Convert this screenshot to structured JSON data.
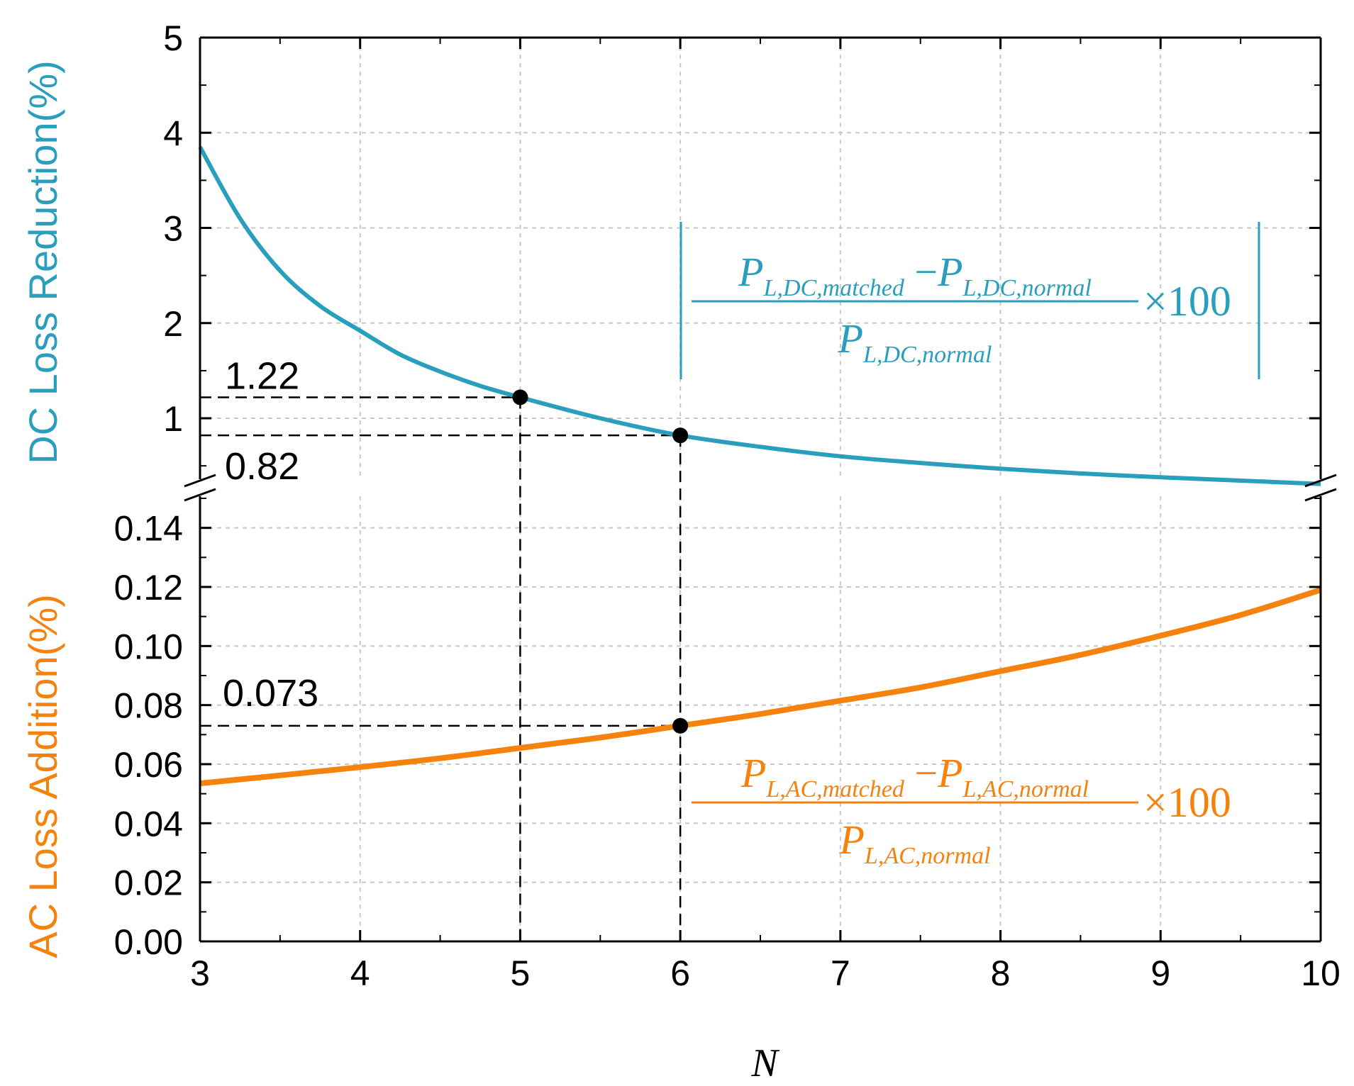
{
  "chart_data": {
    "type": "line",
    "x": {
      "label": "N",
      "range": [
        3,
        10
      ],
      "ticks": [
        "3",
        "4",
        "5",
        "6",
        "7",
        "8",
        "9",
        "10"
      ]
    },
    "panels": [
      {
        "name": "dc",
        "ylabel": "DC Loss Reduction(%)",
        "color": "#2a9fbd",
        "range": [
          0.3,
          5
        ],
        "ticks": [
          "1",
          "2",
          "3",
          "4",
          "5"
        ],
        "series": {
          "x": [
            3,
            3.25,
            3.5,
            3.75,
            4,
            4.25,
            4.5,
            4.75,
            5,
            5.5,
            6,
            6.5,
            7,
            7.5,
            8,
            8.5,
            9,
            9.5,
            10
          ],
          "y": [
            3.85,
            3.1,
            2.55,
            2.18,
            1.92,
            1.67,
            1.49,
            1.34,
            1.22,
            1.0,
            0.82,
            0.7,
            0.6,
            0.53,
            0.47,
            0.42,
            0.38,
            0.345,
            0.31
          ]
        },
        "annotations": [
          {
            "text": "1.22",
            "x": 5,
            "y": 1.22,
            "position": "above"
          },
          {
            "text": "0.82",
            "x": 6,
            "y": 0.82,
            "position": "below"
          }
        ],
        "formula": {
          "main": "P",
          "num_left_sub": "L,DC,matched",
          "minus": "−",
          "num_right_sub": "L,DC,normal",
          "den_sub": "L,DC,normal",
          "times": "×100"
        }
      },
      {
        "name": "ac",
        "ylabel": "AC Loss Addition(%)",
        "color": "#f5820d",
        "range": [
          0,
          0.15
        ],
        "ticks": [
          "0.00",
          "0.02",
          "0.04",
          "0.06",
          "0.08",
          "0.10",
          "0.12",
          "0.14"
        ],
        "series": {
          "x": [
            3,
            3.5,
            4,
            4.5,
            5,
            5.5,
            6,
            6.5,
            7,
            7.5,
            8,
            8.5,
            9,
            9.5,
            10
          ],
          "y": [
            0.0535,
            0.0562,
            0.059,
            0.062,
            0.0655,
            0.069,
            0.073,
            0.077,
            0.0815,
            0.086,
            0.0915,
            0.097,
            0.1035,
            0.1105,
            0.119
          ]
        },
        "annotations": [
          {
            "text": "0.073",
            "x": 6,
            "y": 0.073,
            "position": "above"
          }
        ],
        "formula": {
          "main": "P",
          "num_left_sub": "L,AC,matched",
          "minus": "−",
          "num_right_sub": "L,AC,normal",
          "den_sub": "L,AC,normal",
          "times": "×100"
        }
      }
    ],
    "grid": true,
    "axis_break": true
  }
}
